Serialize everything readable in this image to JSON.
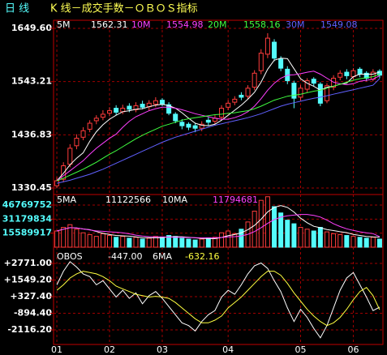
{
  "period": "日 线",
  "title": "K 线－成交手数－ＯＢＯＳ指标",
  "chart_data": [
    {
      "type": "candlestick",
      "categories": [
        "01",
        null,
        null,
        null,
        null,
        null,
        null,
        null,
        "02",
        null,
        null,
        null,
        null,
        null,
        null,
        null,
        "03",
        null,
        null,
        null,
        null,
        null,
        null,
        null,
        null,
        null,
        "04",
        null,
        null,
        null,
        null,
        null,
        null,
        null,
        null,
        null,
        null,
        "05",
        null,
        null,
        null,
        null,
        null,
        null,
        null,
        "06",
        null,
        null,
        null,
        null
      ],
      "open": [
        1335,
        1348,
        1378,
        1415,
        1432,
        1448,
        1465,
        1472,
        1480,
        1490,
        1483,
        1494,
        1487,
        1498,
        1493,
        1498,
        1506,
        1497,
        1478,
        1462,
        1458,
        1455,
        1450,
        1466,
        1464,
        1472,
        1492,
        1502,
        1516,
        1514,
        1532,
        1565,
        1598,
        1622,
        1588,
        1568,
        1540,
        1512,
        1528,
        1548,
        1538,
        1505,
        1532,
        1552,
        1562,
        1553,
        1568,
        1560,
        1548,
        1564
      ],
      "high": [
        1352,
        1382,
        1418,
        1438,
        1452,
        1466,
        1476,
        1486,
        1492,
        1496,
        1497,
        1500,
        1502,
        1505,
        1506,
        1512,
        1510,
        1502,
        1482,
        1468,
        1462,
        1460,
        1464,
        1472,
        1476,
        1496,
        1506,
        1514,
        1522,
        1536,
        1566,
        1608,
        1640,
        1628,
        1594,
        1574,
        1545,
        1536,
        1550,
        1552,
        1542,
        1540,
        1556,
        1566,
        1568,
        1570,
        1572,
        1564,
        1568,
        1568
      ],
      "low": [
        1330,
        1342,
        1372,
        1408,
        1426,
        1442,
        1458,
        1466,
        1474,
        1476,
        1478,
        1482,
        1482,
        1488,
        1486,
        1492,
        1494,
        1476,
        1460,
        1448,
        1446,
        1442,
        1444,
        1456,
        1458,
        1466,
        1486,
        1496,
        1506,
        1508,
        1526,
        1558,
        1590,
        1584,
        1564,
        1538,
        1490,
        1505,
        1522,
        1534,
        1494,
        1500,
        1526,
        1546,
        1548,
        1548,
        1552,
        1544,
        1544,
        1550
      ],
      "close": [
        1345,
        1375,
        1410,
        1430,
        1445,
        1460,
        1470,
        1478,
        1485,
        1482,
        1490,
        1488,
        1495,
        1492,
        1500,
        1505,
        1498,
        1480,
        1465,
        1455,
        1452,
        1450,
        1458,
        1462,
        1470,
        1490,
        1500,
        1508,
        1512,
        1530,
        1560,
        1600,
        1630,
        1590,
        1570,
        1545,
        1510,
        1530,
        1545,
        1540,
        1500,
        1535,
        1550,
        1560,
        1555,
        1565,
        1558,
        1550,
        1562,
        1556
      ],
      "up_color": "#ff3c3c",
      "down_color": "#54fcfc",
      "series": [
        {
          "name": "5M",
          "color": "#ffffff",
          "values": [
            1345,
            1360,
            1377,
            1390,
            1401,
            1424,
            1443,
            1457,
            1468,
            1476,
            1483,
            1485,
            1488,
            1489,
            1493,
            1496,
            1498,
            1495,
            1490,
            1481,
            1470,
            1460,
            1456,
            1455,
            1458,
            1466,
            1476,
            1486,
            1496,
            1508,
            1522,
            1542,
            1568,
            1586,
            1590,
            1589,
            1569,
            1549,
            1540,
            1534,
            1526,
            1532,
            1534,
            1538,
            1540,
            1553,
            1558,
            1558,
            1558,
            1562.31
          ]
        },
        {
          "name": "10M",
          "color": "#ff40ff",
          "values": [
            1345,
            1355,
            1365,
            1375,
            1385,
            1398,
            1410,
            1420,
            1430,
            1438,
            1452,
            1464,
            1473,
            1479,
            1485,
            1489,
            1492,
            1492,
            1490,
            1487,
            1483,
            1479,
            1476,
            1473,
            1470,
            1468,
            1468,
            1471,
            1476,
            1483,
            1494,
            1509,
            1526,
            1540,
            1550,
            1556,
            1557,
            1559,
            1562,
            1564,
            1558,
            1550,
            1542,
            1539,
            1537,
            1539,
            1544,
            1546,
            1548,
            1554.98
          ]
        },
        {
          "name": "20M",
          "color": "#40ff40",
          "values": [
            1345,
            1350,
            1356,
            1362,
            1368,
            1375,
            1382,
            1390,
            1398,
            1405,
            1413,
            1421,
            1429,
            1436,
            1442,
            1448,
            1454,
            1458,
            1462,
            1466,
            1469,
            1471,
            1473,
            1475,
            1477,
            1478,
            1480,
            1481,
            1483,
            1485,
            1489,
            1494,
            1500,
            1506,
            1510,
            1514,
            1516,
            1518,
            1521,
            1524,
            1526,
            1530,
            1534,
            1538,
            1542,
            1546,
            1549,
            1551,
            1553,
            1558.16
          ]
        },
        {
          "name": "30M",
          "color": "#6060ff",
          "values": [
            1340,
            1343,
            1346,
            1350,
            1354,
            1358,
            1363,
            1368,
            1374,
            1380,
            1386,
            1392,
            1398,
            1404,
            1410,
            1416,
            1422,
            1427,
            1432,
            1436,
            1440,
            1444,
            1448,
            1452,
            1456,
            1459,
            1462,
            1465,
            1468,
            1471,
            1475,
            1479,
            1484,
            1489,
            1494,
            1498,
            1501,
            1504,
            1507,
            1510,
            1512,
            1515,
            1518,
            1521,
            1524,
            1527,
            1530,
            1533,
            1536,
            1549.08
          ]
        }
      ],
      "ylim": [
        1317.5,
        1665.8
      ],
      "yticks": [
        {
          "value": 1649.6,
          "label": "1649.60"
        },
        {
          "value": 1543.21,
          "label": "1543.21"
        },
        {
          "value": 1436.83,
          "label": "1436.83"
        },
        {
          "value": 1330.45,
          "label": "1330.45"
        }
      ],
      "tick_color": "#ffffff",
      "grid": true
    },
    {
      "type": "bar",
      "values": [
        18000000,
        22000000,
        25000000,
        20000000,
        16000000,
        14000000,
        12000000,
        15000000,
        13000000,
        11000000,
        12000000,
        10000000,
        11000000,
        9000000,
        10000000,
        12000000,
        11000000,
        13000000,
        12000000,
        10000000,
        9000000,
        8000000,
        9000000,
        10000000,
        11000000,
        16000000,
        18000000,
        15000000,
        20000000,
        28000000,
        40000000,
        52000000,
        56000000,
        45000000,
        38000000,
        30000000,
        26000000,
        22000000,
        20000000,
        18000000,
        22000000,
        17000000,
        15000000,
        14000000,
        13000000,
        12000000,
        11000000,
        10000000,
        11000000,
        9000000
      ],
      "up_color": "#ff3c3c",
      "down_color": "#54fcfc",
      "series": [
        {
          "name": "5MA",
          "color": "#ffffff",
          "values": [
            18000000,
            20000000,
            21700000,
            21300000,
            20200000,
            19400000,
            17400000,
            15400000,
            14000000,
            13000000,
            12600000,
            12200000,
            11400000,
            10600000,
            10400000,
            10400000,
            10600000,
            11400000,
            11600000,
            11600000,
            11000000,
            10400000,
            9600000,
            9600000,
            9400000,
            10800000,
            12800000,
            14000000,
            16000000,
            19400000,
            24200000,
            31000000,
            39200000,
            44200000,
            46200000,
            44200000,
            39000000,
            32200000,
            27200000,
            23200000,
            21600000,
            19600000,
            18400000,
            17200000,
            16200000,
            14200000,
            13000000,
            12000000,
            11400000,
            11122566
          ]
        },
        {
          "name": "10MA",
          "color": "#ff40ff",
          "values": [
            18000000,
            20000000,
            21700000,
            21300000,
            20200000,
            19200000,
            18100000,
            17600000,
            17100000,
            16600000,
            16000000,
            14800000,
            13400000,
            12300000,
            11700000,
            11500000,
            11400000,
            11200000,
            11100000,
            11000000,
            10700000,
            10500000,
            10300000,
            10400000,
            10400000,
            10800000,
            11500000,
            11700000,
            12500000,
            14300000,
            17400000,
            21700000,
            26400000,
            30700000,
            33400000,
            34800000,
            35600000,
            36300000,
            36300000,
            35300000,
            33500000,
            30000000,
            26000000,
            22900000,
            20400000,
            18600000,
            17100000,
            15900000,
            15000000,
            11794681
          ]
        }
      ],
      "ylim": [
        0,
        58460000
      ],
      "yticks": [
        46769752,
        31179834,
        15589917
      ],
      "tick_color": "#54fcfc",
      "grid": true
    },
    {
      "type": "line",
      "series": [
        {
          "name": "OBOS",
          "color": "#ffffff",
          "current_label": "-447.00",
          "values": [
            1200,
            2200,
            2900,
            2500,
            2000,
            1800,
            1200,
            1500,
            900,
            300,
            800,
            200,
            600,
            -200,
            400,
            700,
            200,
            -400,
            -1000,
            -1600,
            -1800,
            -2200,
            -1500,
            -1000,
            -700,
            300,
            800,
            500,
            1200,
            2000,
            2600,
            2800,
            2400,
            1500,
            700,
            -500,
            -1500,
            -600,
            -1200,
            -2000,
            -2700,
            -1800,
            -500,
            800,
            1700,
            2100,
            1200,
            300,
            -700,
            -447
          ]
        },
        {
          "name": "6MA",
          "color": "#ffff40",
          "values": [
            800,
            1200,
            1700,
            2000,
            2200,
            2100,
            2000,
            1800,
            1500,
            1100,
            900,
            700,
            500,
            400,
            300,
            350,
            300,
            200,
            -100,
            -500,
            -900,
            -1300,
            -1600,
            -1600,
            -1400,
            -1100,
            -500,
            -100,
            300,
            800,
            1300,
            1800,
            2200,
            2200,
            1900,
            1300,
            600,
            0,
            -600,
            -1100,
            -1500,
            -1800,
            -1600,
            -1200,
            -600,
            100,
            700,
            1000,
            400,
            -632.16
          ]
        }
      ],
      "ylim": [
        -3189,
        3963
      ],
      "yticks": [
        {
          "value": 2771,
          "label": "+2771.00"
        },
        {
          "value": 1549.2,
          "label": "+1549.20"
        },
        {
          "value": 327.4,
          "label": "+327.40"
        },
        {
          "value": -894.4,
          "label": "-894.40"
        },
        {
          "value": -2116.2,
          "label": "-2116.20"
        }
      ],
      "tick_color": "#ffffff",
      "grid": true
    }
  ]
}
